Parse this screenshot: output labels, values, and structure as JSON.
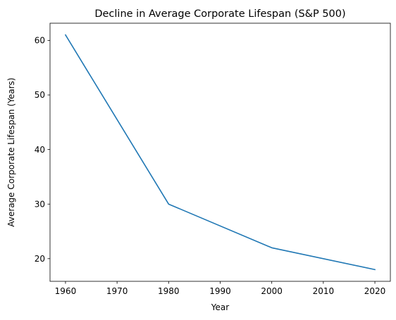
{
  "chart_data": {
    "type": "line",
    "title": "Decline in Average Corporate Lifespan (S&P 500)",
    "xlabel": "Year",
    "ylabel": "Average Corporate Lifespan (Years)",
    "x": [
      1960,
      1980,
      2000,
      2020
    ],
    "series": [
      {
        "values": [
          61,
          30,
          22,
          18
        ],
        "color": "#1f77b4"
      }
    ],
    "xlim": [
      1957,
      2023
    ],
    "ylim": [
      15.85,
      63.15
    ],
    "xticks": [
      1960,
      1970,
      1980,
      1990,
      2000,
      2010,
      2020
    ],
    "yticks": [
      20,
      30,
      40,
      50,
      60
    ],
    "grid": false,
    "legend": "none"
  }
}
